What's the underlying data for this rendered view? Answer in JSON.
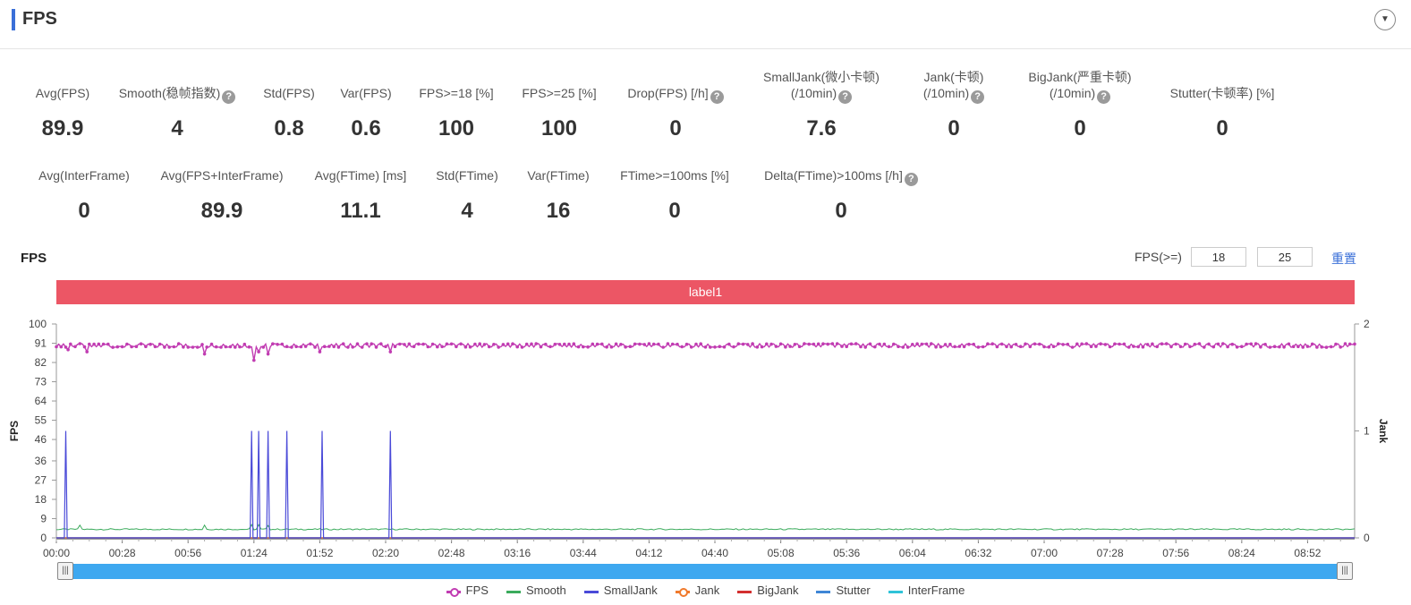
{
  "header": {
    "title": "FPS",
    "collapse_icon": "chevron-down-icon"
  },
  "metrics_row1": [
    {
      "label": "Avg(FPS)",
      "label2": "",
      "value": "89.9",
      "help": false
    },
    {
      "label": "Smooth(稳帧指数)",
      "label2": "",
      "value": "4",
      "help": true
    },
    {
      "label": "Std(FPS)",
      "label2": "",
      "value": "0.8",
      "help": false
    },
    {
      "label": "Var(FPS)",
      "label2": "",
      "value": "0.6",
      "help": false
    },
    {
      "label": "FPS>=18 [%]",
      "label2": "",
      "value": "100",
      "help": false
    },
    {
      "label": "FPS>=25 [%]",
      "label2": "",
      "value": "100",
      "help": false
    },
    {
      "label": "Drop(FPS) [/h]",
      "label2": "",
      "value": "0",
      "help": true
    },
    {
      "label": "SmallJank(微小卡顿)",
      "label2": "(/10min)",
      "value": "7.6",
      "help": true
    },
    {
      "label": "Jank(卡顿)",
      "label2": "(/10min)",
      "value": "0",
      "help": true
    },
    {
      "label": "BigJank(严重卡顿)",
      "label2": "(/10min)",
      "value": "0",
      "help": true
    },
    {
      "label": "Stutter(卡顿率) [%]",
      "label2": "",
      "value": "0",
      "help": false
    }
  ],
  "metrics_row2": [
    {
      "label": "Avg(InterFrame)",
      "value": "0",
      "help": false
    },
    {
      "label": "Avg(FPS+InterFrame)",
      "value": "89.9",
      "help": false
    },
    {
      "label": "Avg(FTime) [ms]",
      "value": "11.1",
      "help": false
    },
    {
      "label": "Std(FTime)",
      "value": "4",
      "help": false
    },
    {
      "label": "Var(FTime)",
      "value": "16",
      "help": false
    },
    {
      "label": "FTime>=100ms [%]",
      "value": "0",
      "help": false
    },
    {
      "label": "Delta(FTime)>100ms [/h]",
      "value": "0",
      "help": true
    }
  ],
  "chart_section": {
    "title": "FPS",
    "threshold_label": "FPS(>=)",
    "threshold_1": "18",
    "threshold_2": "25",
    "reset_label": "重置",
    "label_band": "label1"
  },
  "chart_data": {
    "type": "line",
    "ylabel": "FPS",
    "y2label": "Jank",
    "ylim": [
      0,
      100
    ],
    "y2lim": [
      0,
      2
    ],
    "yticks": [
      "0",
      "9",
      "18",
      "27",
      "36",
      "46",
      "55",
      "64",
      "73",
      "82",
      "91",
      "100"
    ],
    "y2ticks": [
      "0",
      "1",
      "2"
    ],
    "xticks": [
      "00:00",
      "00:28",
      "00:56",
      "01:24",
      "01:52",
      "02:20",
      "02:48",
      "03:16",
      "03:44",
      "04:12",
      "04:40",
      "05:08",
      "05:36",
      "06:04",
      "06:32",
      "07:00",
      "07:28",
      "07:56",
      "08:24",
      "08:52"
    ],
    "x_range_seconds": [
      0,
      552
    ],
    "series": [
      {
        "name": "FPS",
        "color": "#c13cb2",
        "axis": "left",
        "typical": 89.9,
        "min_seen": 83,
        "dips": [
          [
            5,
            88
          ],
          [
            13,
            87
          ],
          [
            63,
            86
          ],
          [
            84,
            83
          ],
          [
            86,
            87
          ],
          [
            90,
            86
          ],
          [
            112,
            87
          ],
          [
            142,
            87
          ]
        ]
      },
      {
        "name": "Smooth",
        "color": "#3bab5c",
        "axis": "left",
        "typical": 4
      },
      {
        "name": "SmallJank",
        "color": "#4a4ad8",
        "axis": "right",
        "spike_times": [
          4,
          83,
          86,
          90,
          98,
          113,
          142
        ],
        "spike_value": 1
      },
      {
        "name": "Jank",
        "color": "#f07a2c",
        "axis": "right",
        "values_all": 0
      },
      {
        "name": "BigJank",
        "color": "#d32f2f",
        "axis": "right",
        "values_all": 0
      },
      {
        "name": "Stutter",
        "color": "#3f86d6",
        "axis": "left",
        "values_all": 0
      },
      {
        "name": "InterFrame",
        "color": "#2fc3d8",
        "axis": "left",
        "values_all": 0
      }
    ],
    "legend_position": "bottom-center",
    "grid": false
  },
  "legend": [
    {
      "name": "FPS",
      "color": "#c13cb2",
      "marker": true
    },
    {
      "name": "Smooth",
      "color": "#3bab5c",
      "marker": false
    },
    {
      "name": "SmallJank",
      "color": "#4a4ad8",
      "marker": false
    },
    {
      "name": "Jank",
      "color": "#f07a2c",
      "marker": true
    },
    {
      "name": "BigJank",
      "color": "#d32f2f",
      "marker": false
    },
    {
      "name": "Stutter",
      "color": "#3f86d6",
      "marker": false
    },
    {
      "name": "InterFrame",
      "color": "#2fc3d8",
      "marker": false
    }
  ],
  "slider": {
    "handle_glyph": "|||"
  }
}
